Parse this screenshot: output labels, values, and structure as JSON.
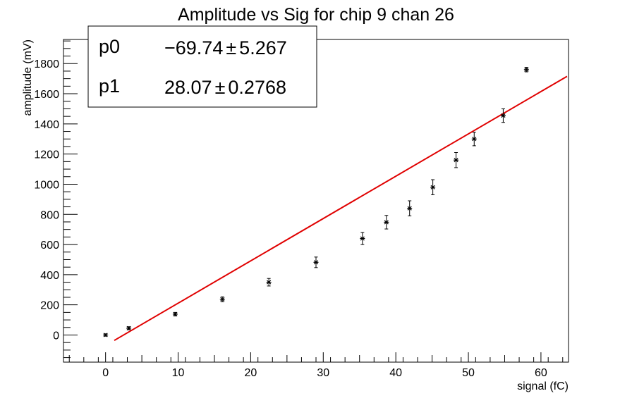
{
  "chart_data": {
    "type": "scatter",
    "title": "Amplitude vs Sig for chip 9 chan 26",
    "xlabel": "signal (fC)",
    "ylabel": "amplitude (mV)",
    "xlim": [
      -5.8,
      63.8
    ],
    "ylim": [
      -180,
      1960
    ],
    "xticks": [
      0,
      10,
      20,
      30,
      40,
      50,
      60
    ],
    "yticks": [
      0,
      200,
      400,
      600,
      800,
      1000,
      1200,
      1400,
      1600,
      1800
    ],
    "grid": false,
    "points": [
      {
        "x": 0.0,
        "y": 0,
        "err": 8
      },
      {
        "x": 3.2,
        "y": 45,
        "err": 10
      },
      {
        "x": 9.6,
        "y": 138,
        "err": 12
      },
      {
        "x": 16.1,
        "y": 237,
        "err": 16
      },
      {
        "x": 22.5,
        "y": 350,
        "err": 25
      },
      {
        "x": 29.0,
        "y": 482,
        "err": 35
      },
      {
        "x": 35.4,
        "y": 640,
        "err": 40
      },
      {
        "x": 38.7,
        "y": 748,
        "err": 45
      },
      {
        "x": 41.9,
        "y": 840,
        "err": 50
      },
      {
        "x": 45.1,
        "y": 980,
        "err": 50
      },
      {
        "x": 48.3,
        "y": 1160,
        "err": 50
      },
      {
        "x": 50.8,
        "y": 1300,
        "err": 45
      },
      {
        "x": 54.8,
        "y": 1455,
        "err": 45
      },
      {
        "x": 58.0,
        "y": 1760,
        "err": 15
      }
    ],
    "fit": {
      "color": "#e00000",
      "x_range": [
        1.2,
        63.6
      ],
      "p0": -69.74,
      "p1": 28.07
    },
    "stats": {
      "rows": [
        {
          "name": "p0",
          "value": "−69.74",
          "error": "5.267"
        },
        {
          "name": "p1",
          "value": "28.07",
          "error": "0.2768"
        }
      ],
      "pm": "±"
    }
  }
}
